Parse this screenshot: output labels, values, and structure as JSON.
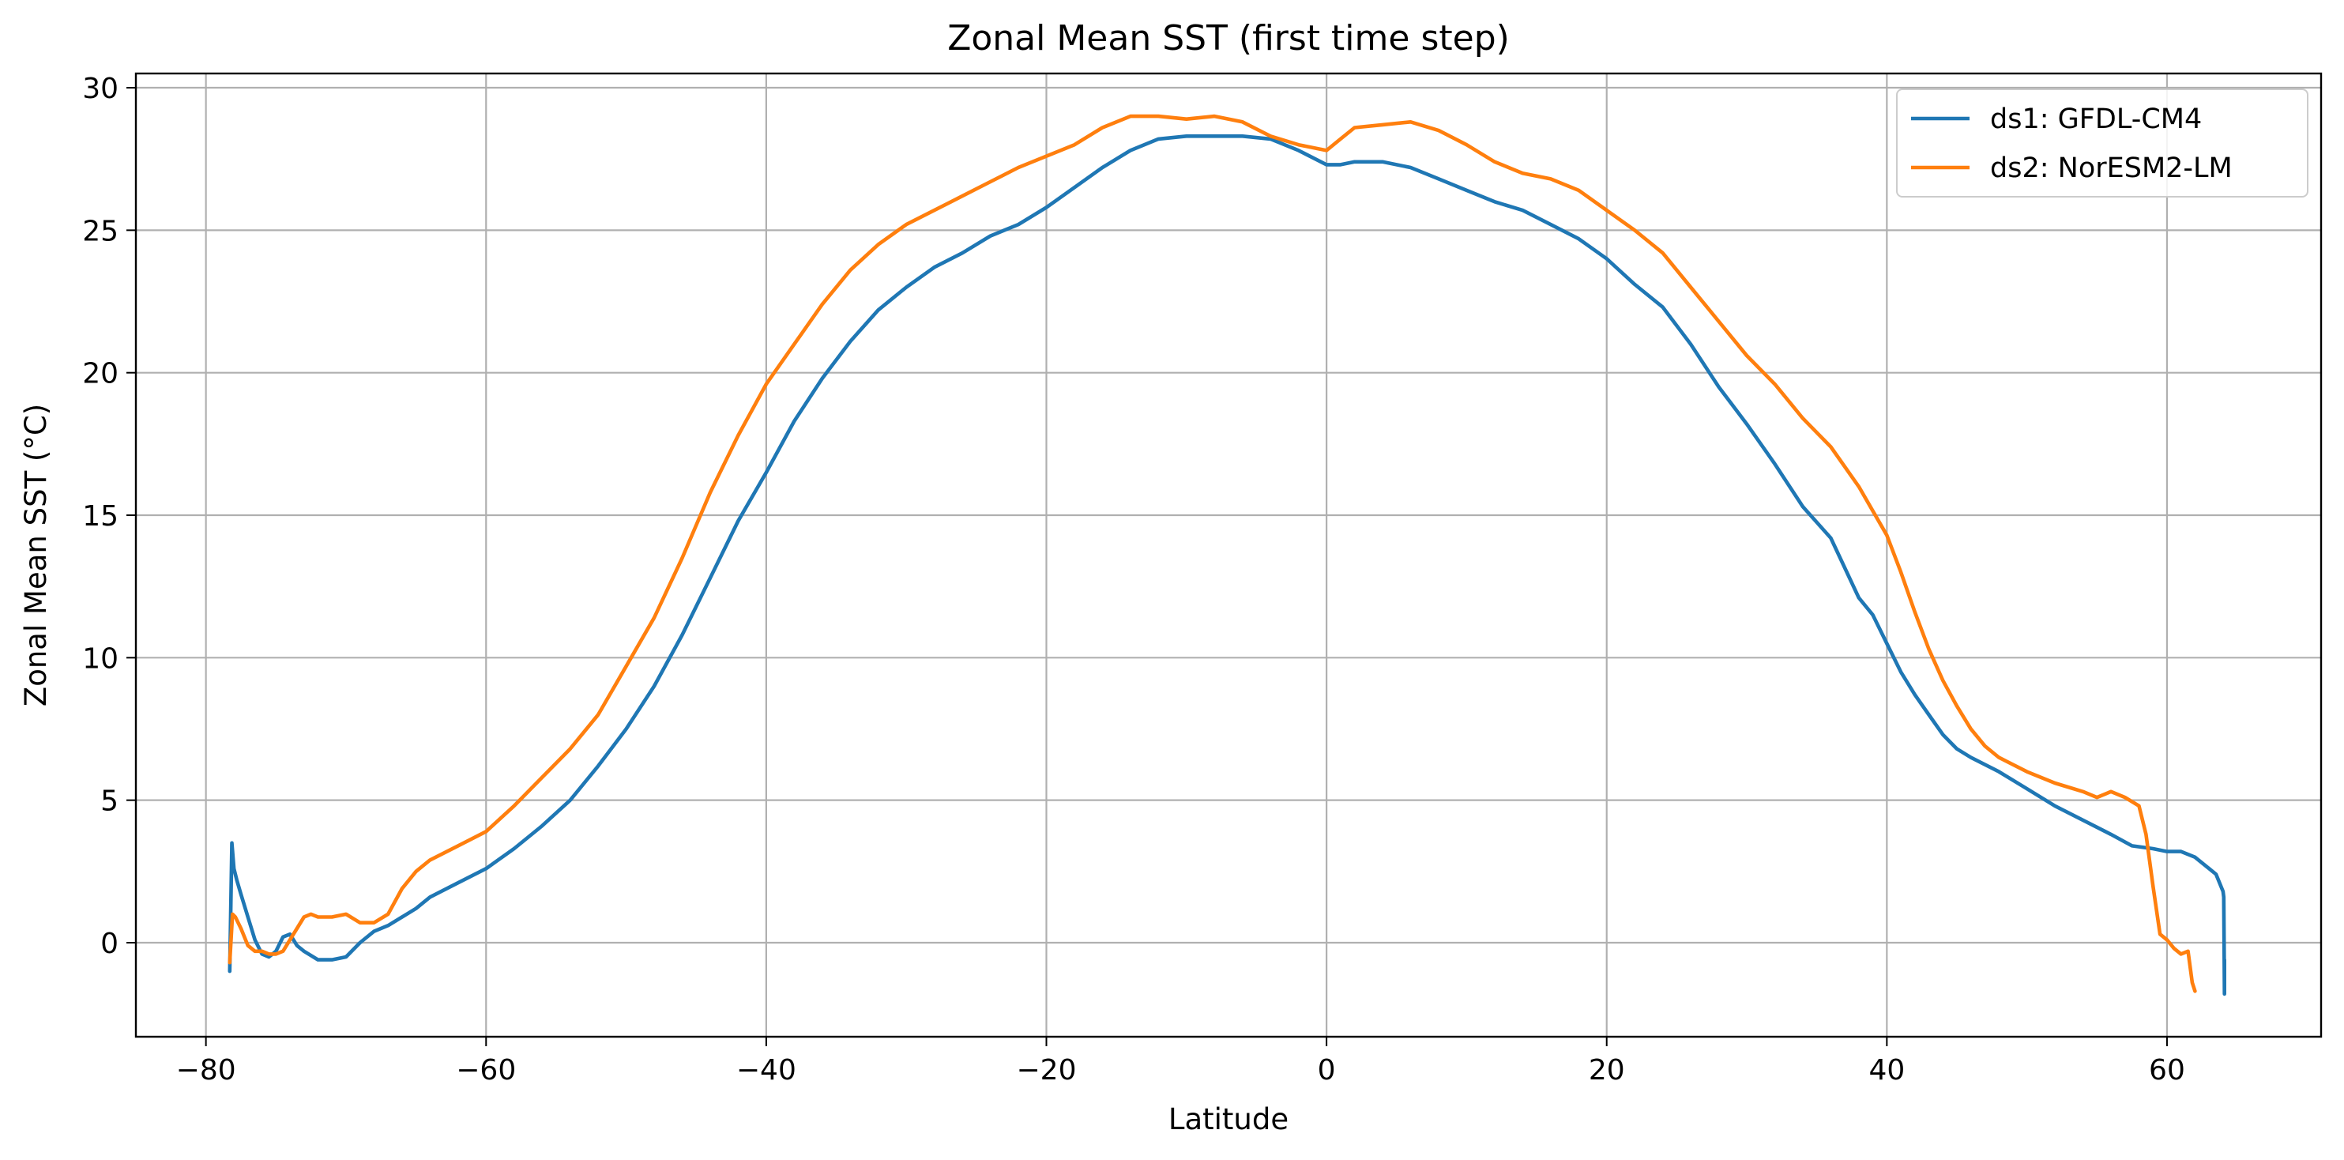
{
  "chart_data": {
    "type": "line",
    "title": "Zonal Mean SST (first time step)",
    "xlabel": "Latitude",
    "ylabel": "Zonal Mean SST (°C)",
    "xlim": [
      -85,
      71
    ],
    "ylim": [
      -3.3,
      30.5
    ],
    "xticks": [
      -80,
      -60,
      -40,
      -20,
      0,
      20,
      40,
      60
    ],
    "xtick_labels": [
      "−80",
      "−60",
      "−40",
      "−20",
      "0",
      "20",
      "40",
      "60"
    ],
    "yticks": [
      0,
      5,
      10,
      15,
      20,
      25,
      30
    ],
    "ytick_labels": [
      "0",
      "5",
      "10",
      "15",
      "20",
      "25",
      "30"
    ],
    "grid": true,
    "legend_position": "top-right",
    "series": [
      {
        "name": "ds1: GFDL-CM4",
        "color": "#1f77b4",
        "x": [
          -78.3,
          -78.15,
          -78.0,
          -77.8,
          -77.5,
          -77.0,
          -76.5,
          -76.0,
          -75.5,
          -75.0,
          -74.5,
          -74.0,
          -73.5,
          -73.0,
          -72.0,
          -71.0,
          -70.0,
          -69.0,
          -68.0,
          -67.0,
          -66.0,
          -65.0,
          -64.0,
          -62.0,
          -60.0,
          -58.0,
          -56.0,
          -54.0,
          -52.0,
          -50.0,
          -48.0,
          -46.0,
          -44.0,
          -42.0,
          -40.0,
          -38.0,
          -36.0,
          -34.0,
          -32.0,
          -30.0,
          -28.0,
          -26.0,
          -24.0,
          -22.0,
          -20.0,
          -18.0,
          -16.0,
          -14.0,
          -12.0,
          -10.0,
          -8.0,
          -6.0,
          -4.0,
          -2.0,
          0.0,
          1.0,
          2.0,
          4.0,
          6.0,
          8.0,
          10.0,
          12.0,
          14.0,
          16.0,
          18.0,
          20.0,
          22.0,
          24.0,
          26.0,
          28.0,
          30.0,
          32.0,
          34.0,
          36.0,
          38.0,
          39.0,
          40.0,
          41.0,
          42.0,
          43.0,
          44.0,
          45.0,
          46.0,
          48.0,
          50.0,
          52.0,
          54.0,
          56.0,
          57.5,
          59.0,
          60.0,
          61.0,
          62.0,
          63.0,
          63.5,
          64.0,
          64.05,
          64.1,
          64.1
        ],
        "values": [
          -1.0,
          3.5,
          2.6,
          2.2,
          1.7,
          0.9,
          0.1,
          -0.4,
          -0.5,
          -0.3,
          0.2,
          0.3,
          -0.1,
          -0.3,
          -0.6,
          -0.6,
          -0.5,
          0.0,
          0.4,
          0.6,
          0.9,
          1.2,
          1.6,
          2.1,
          2.6,
          3.3,
          4.1,
          5.0,
          6.2,
          7.5,
          9.0,
          10.8,
          12.8,
          14.8,
          16.5,
          18.3,
          19.8,
          21.1,
          22.2,
          23.0,
          23.7,
          24.2,
          24.8,
          25.2,
          25.8,
          26.5,
          27.2,
          27.8,
          28.2,
          28.3,
          28.3,
          28.3,
          28.2,
          27.8,
          27.3,
          27.3,
          27.4,
          27.4,
          27.2,
          26.8,
          26.4,
          26.0,
          25.7,
          25.2,
          24.7,
          24.0,
          23.1,
          22.3,
          21.0,
          19.5,
          18.2,
          16.8,
          15.3,
          14.2,
          12.1,
          11.5,
          10.5,
          9.5,
          8.7,
          8.0,
          7.3,
          6.8,
          6.5,
          6.0,
          5.4,
          4.8,
          4.3,
          3.8,
          3.4,
          3.3,
          3.2,
          3.2,
          3.0,
          2.6,
          2.4,
          1.8,
          1.6,
          -1.8,
          -0.6
        ]
      },
      {
        "name": "ds2: NorESM2-LM",
        "color": "#ff7f0e",
        "x": [
          -78.3,
          -78.1,
          -77.9,
          -77.5,
          -77.0,
          -76.5,
          -76.0,
          -75.5,
          -75.0,
          -74.5,
          -74.0,
          -73.5,
          -73.0,
          -72.5,
          -72.0,
          -71.0,
          -70.0,
          -69.0,
          -68.0,
          -67.0,
          -66.0,
          -65.0,
          -64.0,
          -62.0,
          -60.0,
          -58.0,
          -56.0,
          -54.0,
          -52.0,
          -50.0,
          -48.0,
          -46.0,
          -44.0,
          -42.0,
          -40.0,
          -38.0,
          -36.0,
          -34.0,
          -32.0,
          -30.0,
          -28.0,
          -26.0,
          -24.0,
          -22.0,
          -20.0,
          -18.0,
          -16.0,
          -14.0,
          -12.0,
          -10.0,
          -8.0,
          -6.0,
          -4.0,
          -2.0,
          0.0,
          1.0,
          2.0,
          4.0,
          6.0,
          8.0,
          10.0,
          12.0,
          14.0,
          16.0,
          18.0,
          20.0,
          22.0,
          24.0,
          26.0,
          28.0,
          30.0,
          32.0,
          34.0,
          36.0,
          38.0,
          40.0,
          41.0,
          42.0,
          43.0,
          44.0,
          45.0,
          46.0,
          47.0,
          48.0,
          50.0,
          52.0,
          54.0,
          55.0,
          56.0,
          57.0,
          58.0,
          58.5,
          59.0,
          59.5,
          60.0,
          60.5,
          61.0,
          61.5,
          61.8,
          62.0
        ],
        "values": [
          -0.7,
          1.0,
          0.9,
          0.5,
          -0.1,
          -0.3,
          -0.3,
          -0.4,
          -0.4,
          -0.3,
          0.1,
          0.5,
          0.9,
          1.0,
          0.9,
          0.9,
          1.0,
          0.7,
          0.7,
          1.0,
          1.9,
          2.5,
          2.9,
          3.4,
          3.9,
          4.8,
          5.8,
          6.8,
          8.0,
          9.7,
          11.4,
          13.5,
          15.8,
          17.8,
          19.6,
          21.0,
          22.4,
          23.6,
          24.5,
          25.2,
          25.7,
          26.2,
          26.7,
          27.2,
          27.6,
          28.0,
          28.6,
          29.0,
          29.0,
          28.9,
          29.0,
          28.8,
          28.3,
          28.0,
          27.8,
          28.2,
          28.6,
          28.7,
          28.8,
          28.5,
          28.0,
          27.4,
          27.0,
          26.8,
          26.4,
          25.7,
          25.0,
          24.2,
          23.0,
          21.8,
          20.6,
          19.6,
          18.4,
          17.4,
          16.0,
          14.3,
          13.0,
          11.6,
          10.3,
          9.2,
          8.3,
          7.5,
          6.9,
          6.5,
          6.0,
          5.6,
          5.3,
          5.1,
          5.3,
          5.1,
          4.8,
          3.8,
          2.0,
          0.3,
          0.1,
          -0.2,
          -0.4,
          -0.3,
          -1.4,
          -1.7
        ]
      }
    ]
  }
}
